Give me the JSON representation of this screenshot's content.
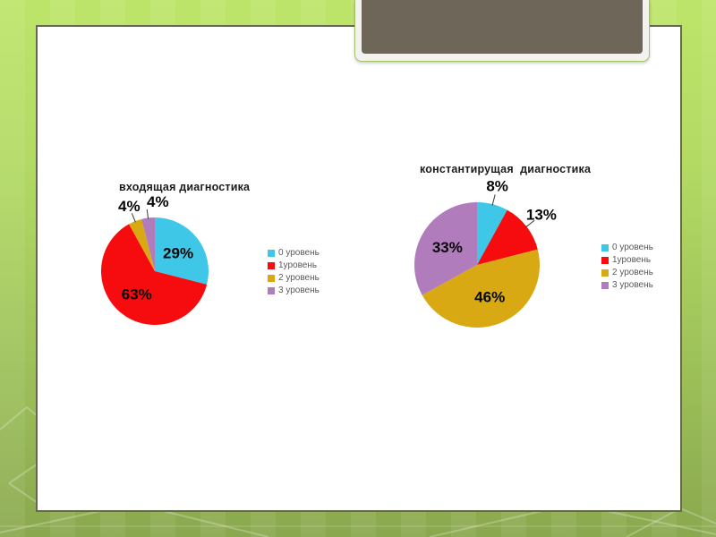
{
  "slide": {
    "banner_color": "#6E6659",
    "border_green_light": "#bde56a",
    "border_green_dark": "#8aa84e"
  },
  "chart_data": [
    {
      "type": "pie",
      "title": "входящая диагностика",
      "labels": [
        "0 уровень",
        "1уровень",
        "2 уровень",
        "3 уровень"
      ],
      "values": [
        29,
        63,
        4,
        4
      ],
      "data_labels": [
        "29%",
        "63%",
        "4%",
        "4%"
      ],
      "colors": [
        "#3EC7E6",
        "#F60B0E",
        "#D9A913",
        "#B17CBB"
      ],
      "legend_position": "right",
      "unit": "%"
    },
    {
      "type": "pie",
      "title": "константирущая  диагностика",
      "labels": [
        "0 уровень",
        "1уровень",
        "2 уровень",
        "3 уровень"
      ],
      "values": [
        8,
        13,
        46,
        33
      ],
      "data_labels": [
        "8%",
        "13%",
        "46%",
        "33%"
      ],
      "colors": [
        "#3EC7E6",
        "#F60B0E",
        "#D9A913",
        "#B17CBB"
      ],
      "legend_position": "right",
      "unit": "%"
    }
  ]
}
